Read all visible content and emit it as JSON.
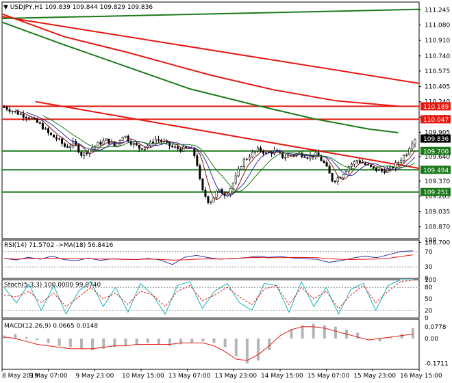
{
  "symbol": "USDJPY,H1",
  "symbol_header": "USDJPY,H1  109.839 109.844 109.829 109.836",
  "ohlc": {
    "open": 109.839,
    "high": 109.844,
    "low": 109.829,
    "close": 109.836
  },
  "chart_data": {
    "type": "candlestick",
    "main": {
      "ylim": [
        108.74,
        111.33
      ],
      "y_ticks": [
        "111.245",
        "111.080",
        "110.910",
        "110.740",
        "110.575",
        "110.405",
        "110.240",
        "110.070",
        "109.905",
        "109.640",
        "109.370",
        "109.205",
        "109.035",
        "108.870",
        "108.700"
      ],
      "price_tags": [
        {
          "label": "110.189",
          "value": 110.189,
          "color": "#e8170f"
        },
        {
          "label": "110.047",
          "value": 110.047,
          "color": "#e8170f"
        },
        {
          "label": "109.836",
          "value": 109.836,
          "color": "#000000"
        },
        {
          "label": "109.700",
          "value": 109.7,
          "color": "#1a7a1a"
        },
        {
          "label": "109.494",
          "value": 109.494,
          "color": "#1a7a1a"
        },
        {
          "label": "109.251",
          "value": 109.251,
          "color": "#1a7a1a"
        }
      ],
      "horizontal_lines": [
        {
          "value": 110.189,
          "color": "#e8170f"
        },
        {
          "value": 110.047,
          "color": "#e8170f"
        },
        {
          "value": 109.7,
          "color": "#1a7a1a"
        },
        {
          "value": 109.494,
          "color": "#1a7a1a"
        },
        {
          "value": 109.251,
          "color": "#1a7a1a"
        }
      ],
      "trend_lines": [
        {
          "from": [
            0,
            111.17
          ],
          "to": [
            1,
            110.44
          ],
          "color": "#e8170f"
        },
        {
          "from": [
            0.08,
            110.24
          ],
          "to": [
            1,
            109.51
          ],
          "color": "#e8170f"
        },
        {
          "from": [
            0,
            111.15
          ],
          "to": [
            1,
            111.25
          ],
          "color": "#1a7a1a"
        }
      ],
      "moving_averages": [
        {
          "name": "MA red",
          "color": "#e8170f",
          "points": [
            [
              0,
              111.2
            ],
            [
              0.15,
              110.95
            ],
            [
              0.3,
              110.78
            ],
            [
              0.5,
              110.53
            ],
            [
              0.65,
              110.37
            ],
            [
              0.8,
              110.25
            ],
            [
              0.95,
              110.19
            ]
          ]
        },
        {
          "name": "MA green",
          "color": "#1a7a1a",
          "points": [
            [
              0,
              111.11
            ],
            [
              0.15,
              110.86
            ],
            [
              0.3,
              110.62
            ],
            [
              0.45,
              110.38
            ],
            [
              0.6,
              110.21
            ],
            [
              0.75,
              110.05
            ],
            [
              0.88,
              109.94
            ],
            [
              0.95,
              109.9
            ]
          ]
        }
      ],
      "close_path": [
        [
          0,
          110.18
        ],
        [
          0.03,
          110.12
        ],
        [
          0.06,
          110.07
        ],
        [
          0.09,
          109.98
        ],
        [
          0.11,
          109.88
        ],
        [
          0.13,
          109.83
        ],
        [
          0.15,
          109.74
        ],
        [
          0.17,
          109.79
        ],
        [
          0.19,
          109.65
        ],
        [
          0.21,
          109.73
        ],
        [
          0.23,
          109.78
        ],
        [
          0.25,
          109.82
        ],
        [
          0.27,
          109.75
        ],
        [
          0.29,
          109.88
        ],
        [
          0.31,
          109.79
        ],
        [
          0.33,
          109.73
        ],
        [
          0.35,
          109.76
        ],
        [
          0.37,
          109.83
        ],
        [
          0.39,
          109.79
        ],
        [
          0.41,
          109.74
        ],
        [
          0.43,
          109.72
        ],
        [
          0.45,
          109.73
        ],
        [
          0.46,
          109.7
        ],
        [
          0.47,
          109.55
        ],
        [
          0.48,
          109.28
        ],
        [
          0.5,
          109.13
        ],
        [
          0.52,
          109.27
        ],
        [
          0.54,
          109.22
        ],
        [
          0.56,
          109.37
        ],
        [
          0.58,
          109.58
        ],
        [
          0.6,
          109.66
        ],
        [
          0.62,
          109.72
        ],
        [
          0.64,
          109.67
        ],
        [
          0.66,
          109.7
        ],
        [
          0.68,
          109.63
        ],
        [
          0.7,
          109.66
        ],
        [
          0.72,
          109.67
        ],
        [
          0.74,
          109.64
        ],
        [
          0.76,
          109.66
        ],
        [
          0.78,
          109.56
        ],
        [
          0.8,
          109.37
        ],
        [
          0.82,
          109.43
        ],
        [
          0.84,
          109.54
        ],
        [
          0.86,
          109.6
        ],
        [
          0.88,
          109.55
        ],
        [
          0.9,
          109.5
        ],
        [
          0.92,
          109.48
        ],
        [
          0.94,
          109.5
        ],
        [
          0.96,
          109.58
        ],
        [
          0.98,
          109.68
        ],
        [
          0.99,
          109.78
        ],
        [
          1,
          109.84
        ]
      ]
    },
    "rsi": {
      "label": "RSI(14) 71.5702  ->MA(18) 56.8416",
      "ylim": [
        0,
        100
      ],
      "ticks": [
        "100",
        "70",
        "30",
        "0"
      ],
      "levels": [
        70,
        30
      ],
      "values": [
        52,
        48,
        55,
        50,
        58,
        49,
        46,
        53,
        47,
        51,
        50,
        49,
        52,
        48,
        36,
        55,
        60,
        54,
        50,
        52,
        53,
        58,
        55,
        57,
        53,
        51,
        50,
        42,
        46,
        53,
        58,
        54,
        62,
        70,
        72
      ]
    },
    "stoch": {
      "label": "Stoch(5,3,3) 100.0000 99.0740",
      "ylim": [
        0,
        100
      ],
      "ticks": [
        "100",
        "80",
        "50",
        "20",
        "0"
      ],
      "levels": [
        80,
        20
      ],
      "main": [
        80,
        40,
        90,
        20,
        85,
        10,
        70,
        95,
        30,
        80,
        15,
        90,
        60,
        10,
        85,
        95,
        25,
        70,
        90,
        40,
        20,
        90,
        85,
        15,
        95,
        30,
        80,
        10,
        75,
        90,
        20,
        85,
        100,
        100
      ],
      "signal": [
        60,
        55,
        70,
        40,
        65,
        30,
        55,
        80,
        50,
        65,
        35,
        70,
        60,
        30,
        70,
        85,
        45,
        60,
        80,
        55,
        35,
        75,
        85,
        35,
        80,
        50,
        70,
        25,
        60,
        85,
        40,
        70,
        95,
        99
      ]
    },
    "macd": {
      "label": "MACD(12,26,9) 0.0665 0.0148",
      "ylim": [
        -0.21,
        0.13
      ],
      "ticks": [
        "0.0778",
        "0.00",
        "-0.1711"
      ],
      "histogram": [
        0.02,
        0.03,
        0.01,
        -0.01,
        -0.03,
        -0.05,
        -0.06,
        -0.07,
        -0.08,
        -0.07,
        -0.06,
        -0.05,
        -0.04,
        -0.03,
        -0.04,
        -0.05,
        -0.04,
        -0.03,
        -0.02,
        -0.03,
        -0.06,
        -0.12,
        -0.17,
        -0.15,
        -0.08,
        0.0,
        0.06,
        0.09,
        0.1,
        0.09,
        0.08,
        0.06,
        0.04,
        0.0,
        -0.02,
        0.01,
        0.03,
        0.07
      ],
      "signal": [
        0.01,
        0.0,
        -0.02,
        -0.04,
        -0.05,
        -0.06,
        -0.07,
        -0.07,
        -0.07,
        -0.06,
        -0.05,
        -0.05,
        -0.04,
        -0.04,
        -0.04,
        -0.04,
        -0.03,
        -0.03,
        -0.03,
        -0.05,
        -0.09,
        -0.14,
        -0.15,
        -0.11,
        -0.05,
        0.02,
        0.06,
        0.08,
        0.08,
        0.07,
        0.05,
        0.03,
        0.01,
        -0.01,
        0.0,
        0.01,
        0.02,
        0.03
      ]
    },
    "x_labels": [
      "8 May 2019",
      "9 May 07:00",
      "9 May 23:00",
      "10 May 15:00",
      "13 May 07:00",
      "13 May 23:00",
      "14 May 15:00",
      "15 May 07:00",
      "15 May 23:00",
      "16 May 15:00"
    ]
  }
}
